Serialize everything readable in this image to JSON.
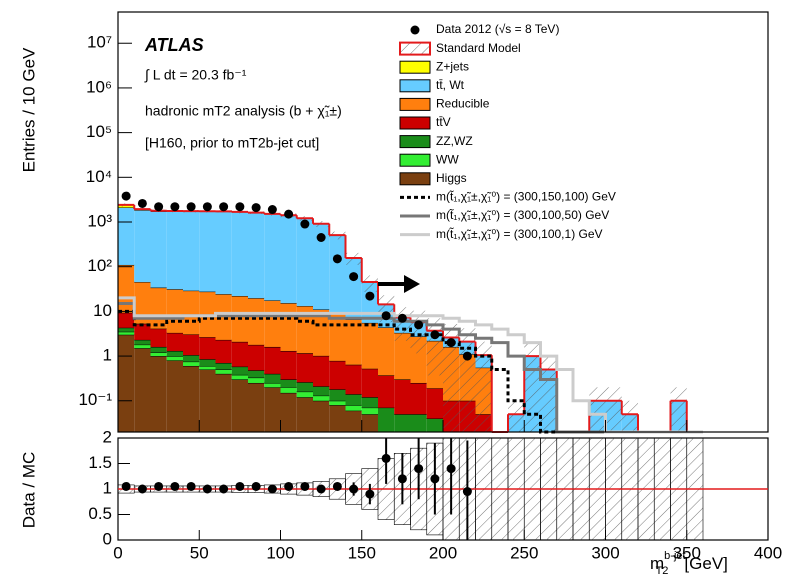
{
  "chart_data": {
    "type": "stacked-histogram-log",
    "y_label": "Entries / 10 GeV",
    "ratio_label": "Data / MC",
    "x_label": {
      "base": "m",
      "sub": "T2",
      "sup": "b-jet",
      "unit": "[GeV]"
    },
    "annotations": {
      "experiment": "ATLAS",
      "lumi": "∫ L dt = 20.3 fb⁻¹",
      "analysis": "hadronic mT2 analysis (b + χ̃₁±)",
      "selection": "[H160, prior to mT2b-jet cut]"
    },
    "xlim": [
      0,
      400
    ],
    "xticks": [
      0,
      50,
      100,
      150,
      200,
      250,
      300,
      350,
      400
    ],
    "ylim": [
      0.02,
      50000000
    ],
    "yticks": [
      {
        "value": 0.1,
        "label": "10⁻¹"
      },
      1,
      10,
      {
        "value": 100,
        "label": "10²"
      },
      {
        "value": 1000,
        "label": "10³"
      },
      {
        "value": 10000,
        "label": "10⁴"
      },
      {
        "value": 100000,
        "label": "10⁵"
      },
      {
        "value": 1000000,
        "label": "10⁶"
      },
      {
        "value": 10000000,
        "label": "10⁷"
      }
    ],
    "ratio_ylim": [
      0,
      2
    ],
    "ratio_yticks": [
      0,
      0.5,
      1,
      1.5,
      2
    ],
    "ratio_reference": 1,
    "cut_arrow_x": 160,
    "bins": [
      0,
      10,
      20,
      30,
      40,
      50,
      60,
      70,
      80,
      90,
      100,
      110,
      120,
      130,
      140,
      150,
      160,
      170,
      180,
      190,
      200,
      210,
      220,
      230,
      240,
      250,
      260,
      270,
      280,
      290,
      300,
      310,
      320,
      330,
      340,
      350,
      360
    ],
    "series": [
      {
        "name": "Higgs",
        "color": "#7a3f10",
        "values": [
          3,
          1.5,
          1,
          0.8,
          0.6,
          0.5,
          0.4,
          0.3,
          0.25,
          0.2,
          0.15,
          0.12,
          0.1,
          0.08,
          0.06,
          0.05,
          0,
          0,
          0,
          0,
          0,
          0,
          0,
          0,
          0,
          0,
          0,
          0,
          0,
          0,
          0,
          0,
          0,
          0,
          0,
          0
        ]
      },
      {
        "name": "WW",
        "color": "#33ee33",
        "values": [
          0.5,
          0.3,
          0.2,
          0.2,
          0.15,
          0.1,
          0.1,
          0.08,
          0.08,
          0.05,
          0.05,
          0.04,
          0.03,
          0.02,
          0.02,
          0.02,
          0.02,
          0.01,
          0.01,
          0.01,
          0,
          0,
          0,
          0,
          0,
          0,
          0,
          0,
          0,
          0,
          0,
          0,
          0,
          0,
          0,
          0
        ]
      },
      {
        "name": "ZZ,WZ",
        "color": "#1a8c1a",
        "values": [
          0.8,
          0.5,
          0.4,
          0.3,
          0.3,
          0.25,
          0.2,
          0.2,
          0.15,
          0.15,
          0.1,
          0.1,
          0.08,
          0.08,
          0.06,
          0.05,
          0.05,
          0.04,
          0.04,
          0.03,
          0,
          0,
          0,
          0,
          0,
          0,
          0,
          0,
          0,
          0,
          0,
          0,
          0,
          0,
          0,
          0
        ]
      },
      {
        "name": "tt̄V",
        "color": "#cc0000",
        "values": [
          5,
          3,
          2.5,
          2,
          2,
          1.8,
          1.6,
          1.5,
          1.3,
          1.2,
          1,
          0.9,
          0.8,
          0.6,
          0.5,
          0.4,
          0.3,
          0.25,
          0.2,
          0.15,
          0.1,
          0.1,
          0.05,
          0,
          0,
          0,
          0,
          0,
          0,
          0,
          0,
          0,
          0,
          0,
          0,
          0
        ]
      },
      {
        "name": "Reducible",
        "color": "#ff7f0e",
        "values": [
          100,
          40,
          30,
          28,
          26,
          25,
          22,
          20,
          18,
          16,
          14,
          12,
          10,
          8,
          6,
          5,
          4,
          3,
          2.5,
          2,
          1.5,
          1,
          0.5,
          0,
          0,
          0,
          0,
          0,
          0,
          0,
          0,
          0,
          0,
          0,
          0,
          0
        ]
      },
      {
        "name": "tt̄, Wt",
        "color": "#66ccff",
        "values": [
          2000,
          1800,
          1700,
          1700,
          1700,
          1700,
          1700,
          1650,
          1600,
          1500,
          1400,
          1200,
          900,
          500,
          150,
          40,
          10,
          4,
          3,
          1.5,
          1,
          1,
          0.5,
          0,
          0.05,
          1,
          0.5,
          0,
          0,
          0.1,
          0.1,
          0.05,
          0,
          0,
          0.1,
          0
        ]
      },
      {
        "name": "Z+jets",
        "color": "#ffff00",
        "values": [
          300,
          100,
          50,
          30,
          20,
          15,
          10,
          8,
          5,
          3,
          2,
          1,
          0.5,
          0,
          0,
          0,
          0,
          0,
          0,
          0,
          0,
          0,
          0,
          0,
          0,
          0,
          0,
          0,
          0,
          0,
          0,
          0,
          0,
          0,
          0,
          0
        ]
      }
    ],
    "total_name": "Standard Model",
    "total_color": "#e31a1c",
    "band_halfwidth": [
      0.08,
      0.06,
      0.06,
      0.06,
      0.06,
      0.06,
      0.06,
      0.07,
      0.07,
      0.08,
      0.1,
      0.12,
      0.15,
      0.2,
      0.3,
      0.4,
      0.6,
      0.7,
      0.8,
      0.9,
      1,
      1,
      1,
      1,
      1,
      1,
      1,
      1,
      1,
      1,
      1,
      1,
      1,
      1,
      1,
      1
    ],
    "signals": [
      {
        "name": "m(t̃₁,χ̃₁±,χ̃₁⁰) = (300,150,100) GeV",
        "color": "#000000",
        "dash": "4,3",
        "values": [
          10,
          5,
          5,
          6,
          6,
          7,
          7,
          7,
          7,
          7,
          7,
          6,
          5,
          5,
          5,
          5,
          5,
          4,
          3,
          3,
          2,
          1.5,
          1,
          0.5,
          0.1,
          0.05,
          0,
          0,
          0,
          0,
          0,
          0,
          0,
          0,
          0,
          0
        ]
      },
      {
        "name": "m(t̃₁,χ̃₁±,χ̃₁⁰) = (300,100,50) GeV",
        "color": "#777777",
        "dash": "none",
        "values": [
          15,
          7,
          7,
          7,
          8,
          8,
          8,
          8,
          8,
          8,
          8,
          8,
          8,
          7,
          7,
          7,
          7,
          6,
          6,
          5,
          4,
          3,
          2.5,
          2,
          1,
          0.5,
          0.3,
          0,
          0,
          0,
          0,
          0,
          0,
          0,
          0,
          0
        ]
      },
      {
        "name": "m(t̃₁,χ̃₁±,χ̃₁⁰) = (300,100,1) GeV",
        "color": "#cccccc",
        "dash": "none",
        "values": [
          20,
          8,
          8,
          8,
          8,
          8,
          9,
          9,
          9,
          9,
          9,
          9,
          9,
          9,
          9,
          9,
          9,
          8,
          8,
          8,
          7,
          6,
          5,
          4,
          3,
          2,
          1,
          0.5,
          0.1,
          0.05,
          0,
          0,
          0,
          0,
          0,
          0
        ]
      }
    ],
    "data": {
      "name": "Data 2012 (√s = 8 TeV)",
      "x": [
        5,
        15,
        25,
        35,
        45,
        55,
        65,
        75,
        85,
        95,
        105,
        115,
        125,
        135,
        145,
        155,
        165,
        175,
        185,
        195,
        205,
        215
      ],
      "values": [
        3800,
        2600,
        2200,
        2200,
        2200,
        2200,
        2200,
        2200,
        2100,
        1900,
        1500,
        900,
        450,
        150,
        60,
        22,
        8,
        7,
        5,
        3,
        2,
        1
      ]
    },
    "ratio": {
      "x": [
        5,
        15,
        25,
        35,
        45,
        55,
        65,
        75,
        85,
        95,
        105,
        115,
        125,
        135,
        145,
        155,
        165,
        175,
        185,
        195,
        205,
        215
      ],
      "values": [
        1.05,
        1.0,
        1.05,
        1.05,
        1.05,
        1.0,
        1.0,
        1.05,
        1.05,
        1.0,
        1.05,
        1.05,
        1.0,
        1.05,
        1.0,
        0.9,
        1.6,
        1.2,
        1.4,
        1.2,
        1.4,
        0.95
      ],
      "errors": [
        0.02,
        0.02,
        0.02,
        0.02,
        0.02,
        0.02,
        0.02,
        0.02,
        0.02,
        0.02,
        0.03,
        0.04,
        0.05,
        0.08,
        0.13,
        0.2,
        0.5,
        0.5,
        0.6,
        0.7,
        0.9,
        1.0
      ]
    }
  }
}
